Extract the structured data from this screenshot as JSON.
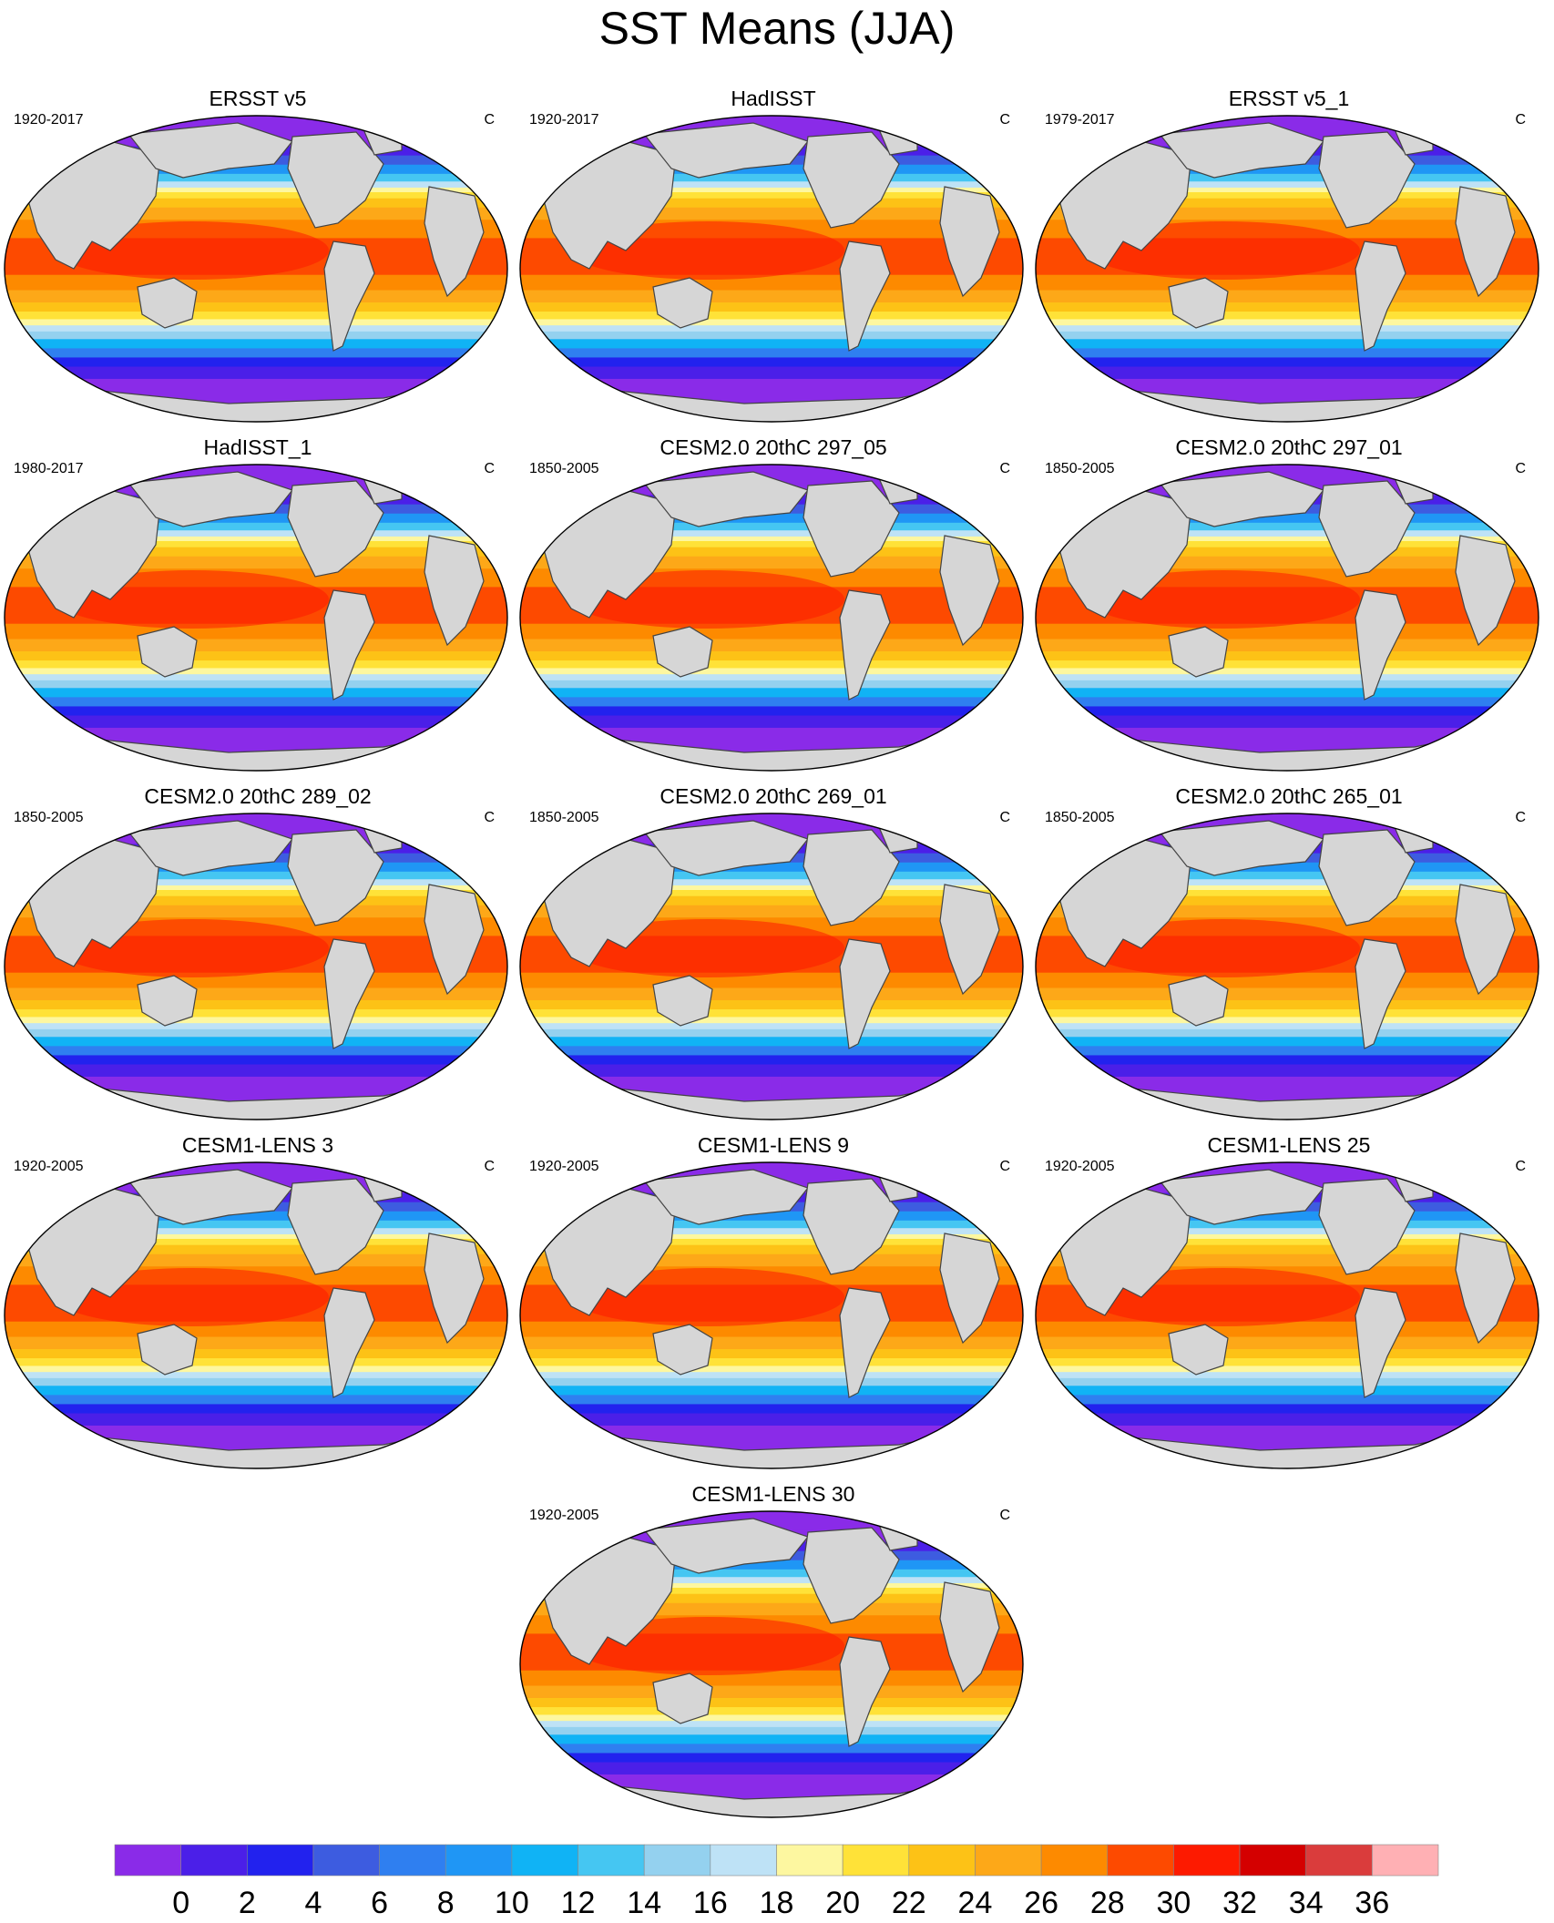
{
  "title": "SST Means (JJA)",
  "panels": [
    {
      "title": "ERSST v5",
      "period": "1920-2017",
      "units": "C"
    },
    {
      "title": "HadISST",
      "period": "1920-2017",
      "units": "C"
    },
    {
      "title": "ERSST v5_1",
      "period": "1979-2017",
      "units": "C"
    },
    {
      "title": "HadISST_1",
      "period": "1980-2017",
      "units": "C"
    },
    {
      "title": "CESM2.0 20thC 297_05",
      "period": "1850-2005",
      "units": "C"
    },
    {
      "title": "CESM2.0 20thC 297_01",
      "period": "1850-2005",
      "units": "C"
    },
    {
      "title": "CESM2.0 20thC 289_02",
      "period": "1850-2005",
      "units": "C"
    },
    {
      "title": "CESM2.0 20thC 269_01",
      "period": "1850-2005",
      "units": "C"
    },
    {
      "title": "CESM2.0 20thC 265_01",
      "period": "1850-2005",
      "units": "C"
    },
    {
      "title": "CESM1-LENS 3",
      "period": "1920-2005",
      "units": "C"
    },
    {
      "title": "CESM1-LENS 9",
      "period": "1920-2005",
      "units": "C"
    },
    {
      "title": "CESM1-LENS 25",
      "period": "1920-2005",
      "units": "C"
    },
    {
      "title": "CESM1-LENS 30",
      "period": "1920-2005",
      "units": "C"
    }
  ],
  "colorbar": {
    "tick_labels": [
      "0",
      "2",
      "4",
      "6",
      "8",
      "10",
      "12",
      "14",
      "16",
      "18",
      "20",
      "22",
      "24",
      "26",
      "28",
      "30",
      "32",
      "34",
      "36"
    ],
    "colors": [
      "#8a2be8",
      "#4b1fe8",
      "#2222ee",
      "#3d5ce0",
      "#2f7ff0",
      "#1f96f5",
      "#10b3f5",
      "#45c6f2",
      "#94d1ef",
      "#bee2f6",
      "#fdf7a0",
      "#ffe238",
      "#fdc216",
      "#fda818",
      "#fd8a00",
      "#fd4a00",
      "#fd1a00",
      "#d40000",
      "#da3c3c",
      "#ffb0b4"
    ],
    "land_color": "#d6d6d6"
  }
}
